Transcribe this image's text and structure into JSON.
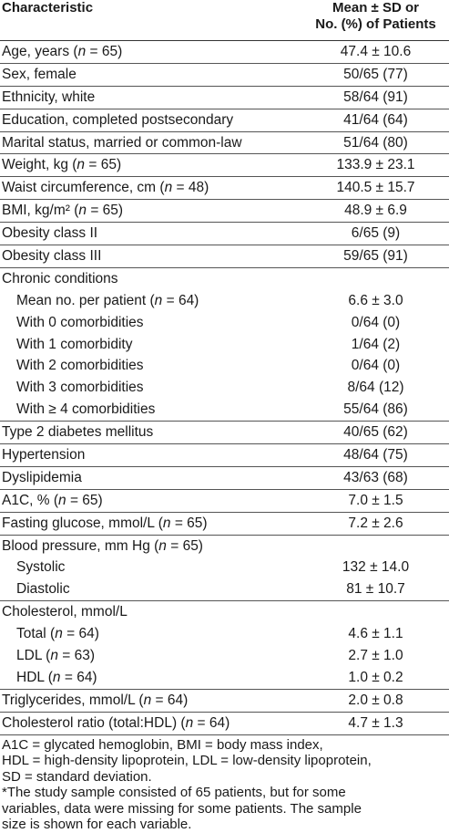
{
  "table": {
    "header": {
      "characteristic": "Characteristic",
      "value": [
        "Mean ± SD or",
        "No. (%) of Patients"
      ]
    },
    "sections": [
      {
        "label": "Age, years (n = 65)",
        "value": "47.4 ± 10.6"
      },
      {
        "label": "Sex, female",
        "value": "50/65 (77)"
      },
      {
        "label": "Ethnicity, white",
        "value": "58/64 (91)"
      },
      {
        "label": "Education, completed postsecondary",
        "value": "41/64 (64)"
      },
      {
        "label": "Marital status, married or common-law",
        "value": "51/64 (80)"
      },
      {
        "label": "Weight, kg (n = 65)",
        "value": "133.9 ± 23.1"
      },
      {
        "label": "Waist circumference, cm (n = 48)",
        "value": "140.5 ± 15.7"
      },
      {
        "label": "BMI, kg/m² (n = 65)",
        "value": "48.9 ± 6.9"
      },
      {
        "label": "Obesity class II",
        "value": "6/65 (9)"
      },
      {
        "label": "Obesity class III",
        "value": "59/65 (91)"
      },
      {
        "label": "Chronic conditions",
        "rows": [
          {
            "label": "Mean no. per patient (n = 64)",
            "value": "6.6 ± 3.0"
          },
          {
            "label": "With 0 comorbidities",
            "value": "0/64 (0)"
          },
          {
            "label": "With 1 comorbidity",
            "value": "1/64 (2)"
          },
          {
            "label": "With 2 comorbidities",
            "value": "0/64 (0)"
          },
          {
            "label": "With 3 comorbidities",
            "value": "8/64 (12)"
          },
          {
            "label": "With ≥ 4 comorbidities",
            "value": "55/64 (86)"
          }
        ]
      },
      {
        "label": "Type 2 diabetes mellitus",
        "value": "40/65 (62)"
      },
      {
        "label": "Hypertension",
        "value": "48/64 (75)"
      },
      {
        "label": "Dyslipidemia",
        "value": "43/63 (68)"
      },
      {
        "label": "A1C, % (n = 65)",
        "value": "7.0 ± 1.5"
      },
      {
        "label": "Fasting glucose, mmol/L (n = 65)",
        "value": "7.2 ± 2.6"
      },
      {
        "label": "Blood pressure, mm Hg (n = 65)",
        "rows": [
          {
            "label": "Systolic",
            "value": "132 ± 14.0"
          },
          {
            "label": "Diastolic",
            "value": "81 ± 10.7"
          }
        ]
      },
      {
        "label": "Cholesterol, mmol/L",
        "rows": [
          {
            "label": "Total (n = 64)",
            "value": "4.6 ± 1.1"
          },
          {
            "label": "LDL (n = 63)",
            "value": "2.7 ± 1.0"
          },
          {
            "label": "HDL (n = 64)",
            "value": "1.0 ± 0.2"
          }
        ]
      },
      {
        "label": "Triglycerides, mmol/L (n = 64)",
        "value": "2.0 ± 0.8"
      },
      {
        "label": "Cholesterol ratio (total:HDL) (n = 64)",
        "value": "4.7 ± 1.3"
      }
    ],
    "footnotes": [
      [
        "A1C = glycated hemoglobin, BMI = body mass index,",
        "HDL = high-density lipoprotein, LDL = low-density lipoprotein,",
        "SD = standard deviation."
      ],
      [
        "*The study sample consisted of 65 patients, but for some",
        "variables, data were missing for some patients. The sample",
        "size is shown for each variable."
      ]
    ]
  }
}
